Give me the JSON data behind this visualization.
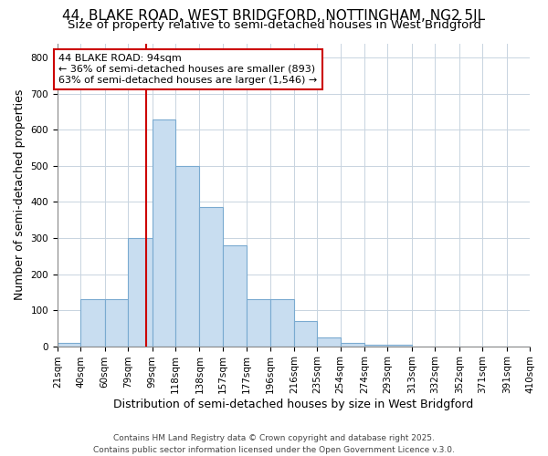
{
  "title1": "44, BLAKE ROAD, WEST BRIDGFORD, NOTTINGHAM, NG2 5JL",
  "title2": "Size of property relative to semi-detached houses in West Bridgford",
  "xlabel": "Distribution of semi-detached houses by size in West Bridgford",
  "ylabel": "Number of semi-detached properties",
  "bin_edges": [
    21,
    40,
    60,
    79,
    99,
    118,
    138,
    157,
    177,
    196,
    216,
    235,
    254,
    274,
    293,
    313,
    332,
    352,
    371,
    391,
    410
  ],
  "bar_heights": [
    8,
    130,
    130,
    300,
    630,
    500,
    385,
    280,
    130,
    130,
    70,
    25,
    10,
    5,
    3,
    0,
    0,
    0,
    0,
    0
  ],
  "bar_color": "#c8ddf0",
  "bar_edge_color": "#7aaad0",
  "red_line_x": 94,
  "annotation_title": "44 BLAKE ROAD: 94sqm",
  "annotation_line1": "← 36% of semi-detached houses are smaller (893)",
  "annotation_line2": "63% of semi-detached houses are larger (1,546) →",
  "annotation_box_color": "#cc0000",
  "ylim": [
    0,
    840
  ],
  "yticks": [
    0,
    100,
    200,
    300,
    400,
    500,
    600,
    700,
    800
  ],
  "bg_color": "#ffffff",
  "plot_bg_color": "#ffffff",
  "grid_color": "#c8d4e0",
  "title1_fontsize": 11,
  "title2_fontsize": 9.5,
  "axis_label_fontsize": 9,
  "tick_fontsize": 7.5,
  "footnote_fontsize": 6.5,
  "footnote": "Contains HM Land Registry data © Crown copyright and database right 2025.\nContains public sector information licensed under the Open Government Licence v.3.0."
}
